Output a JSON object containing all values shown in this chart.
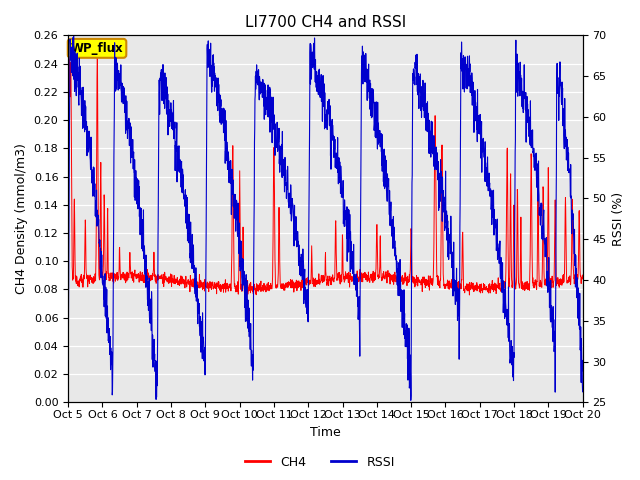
{
  "title": "LI7700 CH4 and RSSI",
  "xlabel": "Time",
  "ylabel_left": "CH4 Density (mmol/m3)",
  "ylabel_right": "RSSI (%)",
  "ylim_left": [
    0.0,
    0.26
  ],
  "ylim_right": [
    25,
    70
  ],
  "yticks_left": [
    0.0,
    0.02,
    0.04,
    0.06,
    0.08,
    0.1,
    0.12,
    0.14,
    0.16,
    0.18,
    0.2,
    0.22,
    0.24,
    0.26
  ],
  "yticks_right": [
    25,
    30,
    35,
    40,
    45,
    50,
    55,
    60,
    65,
    70
  ],
  "xtick_labels": [
    "Oct 5",
    "Oct 6",
    "Oct 7",
    "Oct 8",
    "Oct 9",
    "Oct 10",
    "Oct 11",
    "Oct 12",
    "Oct 13",
    "Oct 14",
    "Oct 15",
    "Oct 16",
    "Oct 17",
    "Oct 18",
    "Oct 19",
    "Oct 20"
  ],
  "ch4_color": "#FF0000",
  "rssi_color": "#0000CD",
  "plot_bg_color": "#E8E8E8",
  "grid_color": "#FFFFFF",
  "annotation_text": "WP_flux",
  "annotation_bg": "#FFFF00",
  "annotation_border": "#CC8800",
  "title_fontsize": 11,
  "axis_fontsize": 9,
  "tick_fontsize": 8,
  "legend_fontsize": 9
}
